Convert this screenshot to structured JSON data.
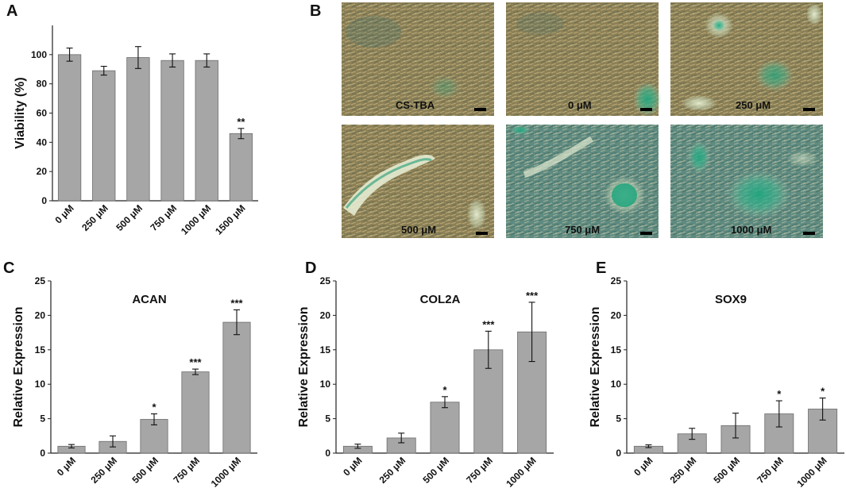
{
  "panels": {
    "a": "A",
    "b": "B",
    "c": "C",
    "d": "D",
    "e": "E"
  },
  "chart_data": [
    {
      "panel": "A",
      "type": "bar",
      "title": "",
      "xlabel": "",
      "ylabel": "Viability (%)",
      "categories": [
        "0 μM",
        "250 μM",
        "500 μM",
        "750 μM",
        "1000 μM",
        "1500 μM"
      ],
      "values": [
        100,
        89,
        98,
        96,
        96,
        46
      ],
      "errors": [
        4.5,
        3,
        7.5,
        4.5,
        4.5,
        3.5
      ],
      "significance": [
        "",
        "",
        "",
        "",
        "",
        "**"
      ],
      "ylim": [
        0,
        120
      ],
      "yticks": [
        0,
        20,
        40,
        60,
        80,
        100
      ],
      "bar_color": "#a6a6a6",
      "grid": false
    },
    {
      "panel": "C",
      "type": "bar",
      "title": "ACAN",
      "xlabel": "",
      "ylabel": "Relative Expression",
      "categories": [
        "0 μM",
        "250 μM",
        "500 μM",
        "750 μM",
        "1000 μM"
      ],
      "values": [
        1.0,
        1.7,
        4.9,
        11.8,
        19.0
      ],
      "errors": [
        0.25,
        0.8,
        0.8,
        0.4,
        1.8
      ],
      "significance": [
        "",
        "",
        "*",
        "***",
        "***"
      ],
      "ylim": [
        0,
        25
      ],
      "yticks": [
        0,
        5,
        10,
        15,
        20,
        25
      ],
      "bar_color": "#a6a6a6",
      "grid": false
    },
    {
      "panel": "D",
      "type": "bar",
      "title": "COL2A",
      "xlabel": "",
      "ylabel": "Relative Expression",
      "categories": [
        "0 μM",
        "250 μM",
        "500 μM",
        "750 μM",
        "1000 μM"
      ],
      "values": [
        1.0,
        2.2,
        7.4,
        15.0,
        17.6
      ],
      "errors": [
        0.3,
        0.7,
        0.8,
        2.7,
        4.3
      ],
      "significance": [
        "",
        "",
        "*",
        "***",
        "***"
      ],
      "ylim": [
        0,
        25
      ],
      "yticks": [
        0,
        5,
        10,
        15,
        20,
        25
      ],
      "bar_color": "#a6a6a6",
      "grid": false
    },
    {
      "panel": "E",
      "type": "bar",
      "title": "SOX9",
      "xlabel": "",
      "ylabel": "Relative Expression",
      "categories": [
        "0 μM",
        "250 μM",
        "500 μM",
        "750 μM",
        "1000 μM"
      ],
      "values": [
        1.0,
        2.8,
        4.0,
        5.7,
        6.4
      ],
      "errors": [
        0.2,
        0.8,
        1.8,
        1.9,
        1.6
      ],
      "significance": [
        "",
        "",
        "",
        "*",
        "*"
      ],
      "ylim": [
        0,
        25
      ],
      "yticks": [
        0,
        5,
        10,
        15,
        20,
        25
      ],
      "bar_color": "#a6a6a6",
      "grid": false
    }
  ],
  "micrographs": {
    "labels": [
      "CS-TBA",
      "0 μM",
      "250 μM",
      "500 μM",
      "750 μM",
      "1000 μM"
    ],
    "base_color": "#8a7e52",
    "stain_color": "#2e9a7c"
  }
}
